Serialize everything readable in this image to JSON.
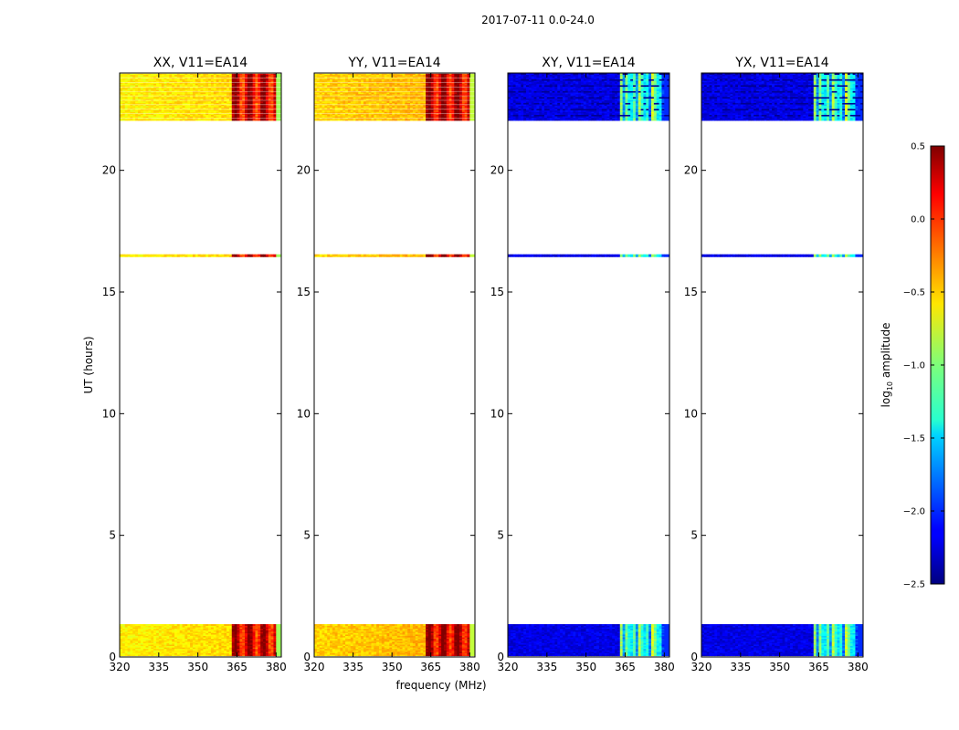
{
  "figure_title": "2017-07-11 0.0-24.0",
  "chart_data": [
    {
      "type": "heatmap",
      "title": "XX, V11=EA14",
      "xlabel": "frequency (MHz)",
      "ylabel": "UT (hours)",
      "xlim": [
        320,
        382
      ],
      "ylim": [
        0,
        24
      ],
      "xticks": [
        "320",
        "335",
        "350",
        "365",
        "380"
      ],
      "yticks": [
        "0",
        "5",
        "10",
        "15",
        "20"
      ],
      "data_bands_ut": [
        [
          0.05,
          1.35
        ],
        [
          16.45,
          16.55
        ],
        [
          22.05,
          24.0
        ]
      ],
      "level_log10_amplitude": {
        "low_freq": -0.6,
        "high_freq_365_380": 0.2
      }
    },
    {
      "type": "heatmap",
      "title": "YY, V11=EA14",
      "xlabel": "frequency (MHz)",
      "ylabel": "UT (hours)",
      "xlim": [
        320,
        382
      ],
      "ylim": [
        0,
        24
      ],
      "xticks": [
        "320",
        "335",
        "350",
        "365",
        "380"
      ],
      "yticks": [
        "0",
        "5",
        "10",
        "15",
        "20"
      ],
      "data_bands_ut": [
        [
          0.05,
          1.35
        ],
        [
          16.45,
          16.55
        ],
        [
          22.05,
          24.0
        ]
      ],
      "level_log10_amplitude": {
        "low_freq": -0.5,
        "high_freq_365_380": 0.25
      }
    },
    {
      "type": "heatmap",
      "title": "XY, V11=EA14",
      "xlabel": "frequency (MHz)",
      "ylabel": "UT (hours)",
      "xlim": [
        320,
        382
      ],
      "ylim": [
        0,
        24
      ],
      "xticks": [
        "320",
        "335",
        "350",
        "365",
        "380"
      ],
      "yticks": [
        "0",
        "5",
        "10",
        "15",
        "20"
      ],
      "data_bands_ut": [
        [
          0.05,
          1.35
        ],
        [
          16.45,
          16.55
        ],
        [
          22.05,
          24.0
        ]
      ],
      "level_log10_amplitude": {
        "low_freq": -2.2,
        "high_freq_365_380": -1.1
      }
    },
    {
      "type": "heatmap",
      "title": "YX, V11=EA14",
      "xlabel": "frequency (MHz)",
      "ylabel": "UT (hours)",
      "xlim": [
        320,
        382
      ],
      "ylim": [
        0,
        24
      ],
      "xticks": [
        "320",
        "335",
        "350",
        "365",
        "380"
      ],
      "yticks": [
        "0",
        "5",
        "10",
        "15",
        "20"
      ],
      "data_bands_ut": [
        [
          0.05,
          1.35
        ],
        [
          16.45,
          16.55
        ],
        [
          22.05,
          24.0
        ]
      ],
      "level_log10_amplitude": {
        "low_freq": -2.2,
        "high_freq_365_380": -1.1
      }
    }
  ],
  "colorbar": {
    "label": "log10 amplitude",
    "label_base": "log",
    "label_sub": "10",
    "label_rest": " amplitude",
    "range": [
      -2.5,
      0.5
    ],
    "ticks": [
      "0.5",
      "0.0",
      "−0.5",
      "−1.0",
      "−1.5",
      "−2.0",
      "−2.5"
    ],
    "colormap": "jet"
  }
}
